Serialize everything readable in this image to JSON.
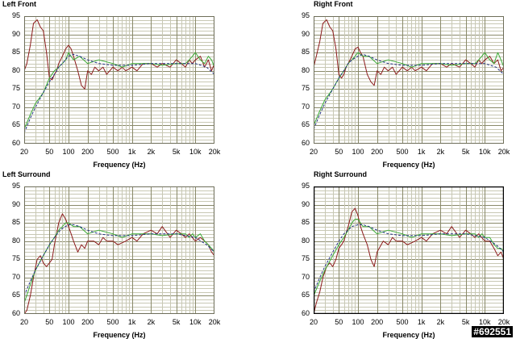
{
  "watermark": "#692551",
  "chart_data": [
    {
      "type": "line",
      "title": "Left Front",
      "xlabel": "Frequency (Hz)",
      "x_scale": "log",
      "xlim": [
        20,
        20000
      ],
      "ylim": [
        60,
        95
      ],
      "yticks": [
        "95",
        "90",
        "85",
        "80",
        "75",
        "70",
        "65",
        "60"
      ],
      "xticks": [
        "20",
        "50",
        "100",
        "200",
        "500",
        "1k",
        "2k",
        "5k",
        "10k",
        "20k"
      ],
      "grid": true,
      "series": [
        {
          "color": "#8b1a1a",
          "style": "solid",
          "x": [
            20,
            22,
            25,
            28,
            32,
            36,
            40,
            45,
            50,
            55,
            60,
            65,
            70,
            80,
            90,
            100,
            110,
            120,
            140,
            160,
            180,
            200,
            230,
            260,
            300,
            350,
            400,
            500,
            600,
            700,
            800,
            1000,
            1200,
            1500,
            2000,
            2500,
            3000,
            4000,
            5000,
            6000,
            7000,
            8000,
            9000,
            10000,
            12000,
            14000,
            16000,
            18000,
            20000
          ],
          "y": [
            80,
            82,
            87,
            93,
            94,
            92,
            91,
            85,
            78,
            77.5,
            79,
            80,
            82,
            84,
            86,
            87,
            86,
            84,
            80,
            76,
            75,
            80,
            79,
            81,
            80,
            81,
            79,
            81,
            80,
            81,
            80,
            81,
            80,
            82,
            82,
            81,
            82,
            81,
            83,
            82,
            81,
            83,
            82,
            83,
            84,
            81,
            83,
            80,
            82
          ]
        },
        {
          "color": "#3aaa35",
          "style": "solid",
          "x": [
            20,
            25,
            30,
            40,
            50,
            60,
            70,
            80,
            90,
            100,
            120,
            150,
            200,
            300,
            500,
            700,
            1000,
            1500,
            2000,
            3000,
            5000,
            7000,
            8000,
            9000,
            10000,
            12000,
            14000,
            16000,
            18000,
            20000
          ],
          "y": [
            64,
            68,
            71,
            74,
            78,
            80,
            81,
            82,
            83,
            85,
            83,
            84,
            82,
            83,
            82,
            81,
            82,
            82,
            82,
            81.5,
            82,
            82,
            83,
            84,
            85,
            83,
            82,
            84,
            83,
            81
          ]
        },
        {
          "color": "#203080",
          "style": "dashed",
          "x": [
            20,
            25,
            30,
            40,
            50,
            60,
            70,
            80,
            100,
            120,
            150,
            200,
            300,
            500,
            1000,
            2000,
            5000,
            10000,
            15000,
            20000
          ],
          "y": [
            63,
            67,
            70,
            74,
            77,
            79,
            81,
            82,
            84,
            84.5,
            84,
            83,
            82,
            81.5,
            81.5,
            82,
            82,
            82,
            81,
            79
          ]
        }
      ]
    },
    {
      "type": "line",
      "title": "Right Front",
      "xlabel": "Frequency (Hz)",
      "x_scale": "log",
      "xlim": [
        20,
        20000
      ],
      "ylim": [
        60,
        95
      ],
      "yticks": [
        "95",
        "90",
        "85",
        "80",
        "75",
        "70",
        "65",
        "60"
      ],
      "xticks": [
        "20",
        "50",
        "100",
        "200",
        "500",
        "1k",
        "2k",
        "5k",
        "10k",
        "20k"
      ],
      "grid": true,
      "series": [
        {
          "color": "#8b1a1a",
          "style": "solid",
          "x": [
            20,
            22,
            25,
            28,
            32,
            36,
            40,
            45,
            50,
            55,
            60,
            65,
            70,
            80,
            90,
            100,
            110,
            120,
            140,
            160,
            180,
            200,
            230,
            260,
            300,
            350,
            400,
            500,
            600,
            700,
            800,
            1000,
            1200,
            1500,
            2000,
            2500,
            3000,
            4000,
            5000,
            6000,
            7000,
            8000,
            9000,
            10000,
            12000,
            14000,
            16000,
            18000,
            20000
          ],
          "y": [
            81,
            84,
            88,
            93,
            94,
            92,
            91,
            86,
            79,
            78,
            79,
            81,
            82,
            84,
            86,
            86.5,
            85,
            84,
            79,
            77,
            76,
            80,
            79,
            81,
            80,
            81,
            79,
            81,
            80,
            81,
            80,
            81,
            80,
            82,
            82,
            81,
            82,
            81,
            83,
            82,
            81,
            83,
            82,
            83,
            84,
            82,
            83,
            80,
            81
          ]
        },
        {
          "color": "#3aaa35",
          "style": "solid",
          "x": [
            20,
            25,
            30,
            40,
            50,
            60,
            70,
            80,
            90,
            100,
            120,
            150,
            200,
            300,
            500,
            700,
            1000,
            1500,
            2000,
            3000,
            5000,
            7000,
            8000,
            9000,
            10000,
            12000,
            14000,
            16000,
            18000,
            20000
          ],
          "y": [
            65,
            69,
            72,
            75,
            78,
            80,
            82,
            83,
            84,
            85,
            84,
            84,
            82,
            83,
            82,
            81,
            82,
            82,
            82,
            81.5,
            82,
            82,
            83,
            84,
            85,
            83,
            82,
            85,
            83,
            81
          ]
        },
        {
          "color": "#203080",
          "style": "dashed",
          "x": [
            20,
            25,
            30,
            40,
            50,
            60,
            70,
            80,
            100,
            120,
            150,
            200,
            300,
            500,
            1000,
            2000,
            5000,
            10000,
            15000,
            20000
          ],
          "y": [
            64,
            68,
            71,
            75,
            78,
            80,
            82,
            83,
            84,
            84.5,
            84,
            83,
            82,
            81.5,
            81.5,
            82,
            82,
            82,
            81,
            79
          ]
        }
      ]
    },
    {
      "type": "line",
      "title": "Left Surround",
      "xlabel": "Frequency (Hz)",
      "x_scale": "log",
      "xlim": [
        20,
        20000
      ],
      "ylim": [
        60,
        95
      ],
      "yticks": [
        "95",
        "90",
        "85",
        "80",
        "75",
        "70",
        "65",
        "60"
      ],
      "xticks": [
        "20",
        "50",
        "100",
        "200",
        "500",
        "1k",
        "2k",
        "5k",
        "10k",
        "20k"
      ],
      "grid": true,
      "series": [
        {
          "color": "#8b1a1a",
          "style": "solid",
          "x": [
            20,
            22,
            25,
            28,
            32,
            36,
            40,
            45,
            50,
            55,
            60,
            70,
            80,
            90,
            100,
            110,
            120,
            140,
            160,
            180,
            200,
            250,
            300,
            350,
            400,
            500,
            600,
            800,
            1000,
            1200,
            1500,
            2000,
            2500,
            3000,
            4000,
            5000,
            6000,
            7000,
            8000,
            10000,
            12000,
            14000,
            16000,
            18000,
            20000
          ],
          "y": [
            60,
            61,
            65,
            70,
            75,
            76,
            74,
            73,
            74,
            75,
            79,
            85,
            87.5,
            86,
            84,
            82,
            80,
            77,
            79,
            78,
            80,
            80,
            79,
            81,
            80,
            80,
            79,
            80,
            81,
            80,
            82,
            83,
            82,
            84,
            81,
            83,
            82,
            81,
            82,
            80,
            81,
            80,
            79,
            77,
            76
          ]
        },
        {
          "color": "#3aaa35",
          "style": "solid",
          "x": [
            20,
            25,
            30,
            40,
            50,
            60,
            70,
            80,
            90,
            100,
            120,
            150,
            200,
            300,
            500,
            700,
            1000,
            1500,
            2000,
            3000,
            5000,
            7000,
            8000,
            9000,
            10000,
            12000,
            14000,
            16000,
            18000,
            20000
          ],
          "y": [
            63,
            68,
            72,
            76,
            79,
            81,
            83,
            84,
            85,
            85,
            84,
            84,
            82,
            83,
            82,
            81,
            82,
            82,
            82,
            81.5,
            82,
            82,
            81,
            82,
            81,
            82,
            80,
            79,
            78,
            77
          ]
        },
        {
          "color": "#203080",
          "style": "dashed",
          "x": [
            20,
            25,
            30,
            40,
            50,
            60,
            70,
            80,
            100,
            120,
            150,
            200,
            300,
            500,
            1000,
            2000,
            5000,
            10000,
            15000,
            20000
          ],
          "y": [
            65,
            69,
            72,
            76,
            79,
            81,
            82.5,
            83.5,
            84.5,
            84.5,
            84,
            83,
            82,
            81.5,
            81.5,
            82,
            82,
            81,
            79,
            77
          ]
        }
      ]
    },
    {
      "type": "line",
      "title": "Right Surround",
      "xlabel": "Frequency (Hz)",
      "x_scale": "log",
      "xlim": [
        20,
        20000
      ],
      "ylim": [
        60,
        95
      ],
      "yticks": [
        "95",
        "90",
        "85",
        "80",
        "75",
        "70",
        "65",
        "60"
      ],
      "xticks": [
        "20",
        "50",
        "100",
        "200",
        "500",
        "1k",
        "2k",
        "5k",
        "10k",
        "20k"
      ],
      "grid": true,
      "series": [
        {
          "color": "#8b1a1a",
          "style": "solid",
          "x": [
            20,
            22,
            25,
            28,
            32,
            36,
            40,
            45,
            50,
            55,
            60,
            70,
            80,
            90,
            100,
            110,
            120,
            140,
            160,
            180,
            200,
            250,
            300,
            350,
            400,
            500,
            600,
            800,
            1000,
            1200,
            1500,
            2000,
            2500,
            3000,
            4000,
            5000,
            6000,
            7000,
            8000,
            10000,
            12000,
            14000,
            16000,
            18000,
            20000
          ],
          "y": [
            60,
            63,
            66,
            70,
            73,
            74,
            73,
            75,
            78,
            79,
            80,
            84,
            88,
            89,
            87,
            84,
            82,
            79,
            75,
            73,
            77,
            80,
            79,
            81,
            80,
            80,
            79,
            80,
            81,
            80,
            82,
            83,
            82,
            84,
            81,
            83,
            82,
            81,
            82,
            80,
            80,
            78,
            76,
            77,
            75
          ]
        },
        {
          "color": "#3aaa35",
          "style": "solid",
          "x": [
            20,
            25,
            30,
            40,
            50,
            60,
            70,
            80,
            90,
            100,
            120,
            150,
            200,
            300,
            500,
            700,
            1000,
            1500,
            2000,
            3000,
            5000,
            7000,
            8000,
            9000,
            10000,
            12000,
            14000,
            16000,
            18000,
            20000
          ],
          "y": [
            65,
            69,
            72,
            76,
            79,
            81,
            83,
            85,
            86,
            86,
            84,
            84,
            82,
            83,
            82,
            81,
            82,
            82,
            82,
            81.5,
            82,
            82,
            81,
            82,
            81,
            81,
            79,
            78,
            78,
            77
          ]
        },
        {
          "color": "#203080",
          "style": "dashed",
          "x": [
            20,
            25,
            30,
            40,
            50,
            60,
            70,
            80,
            100,
            120,
            150,
            200,
            300,
            500,
            1000,
            2000,
            5000,
            10000,
            15000,
            20000
          ],
          "y": [
            66,
            70,
            73,
            77,
            80,
            82,
            83,
            84,
            84.5,
            84.5,
            84,
            83,
            82,
            81.5,
            81.5,
            82,
            82,
            81,
            79,
            77
          ]
        }
      ]
    }
  ]
}
